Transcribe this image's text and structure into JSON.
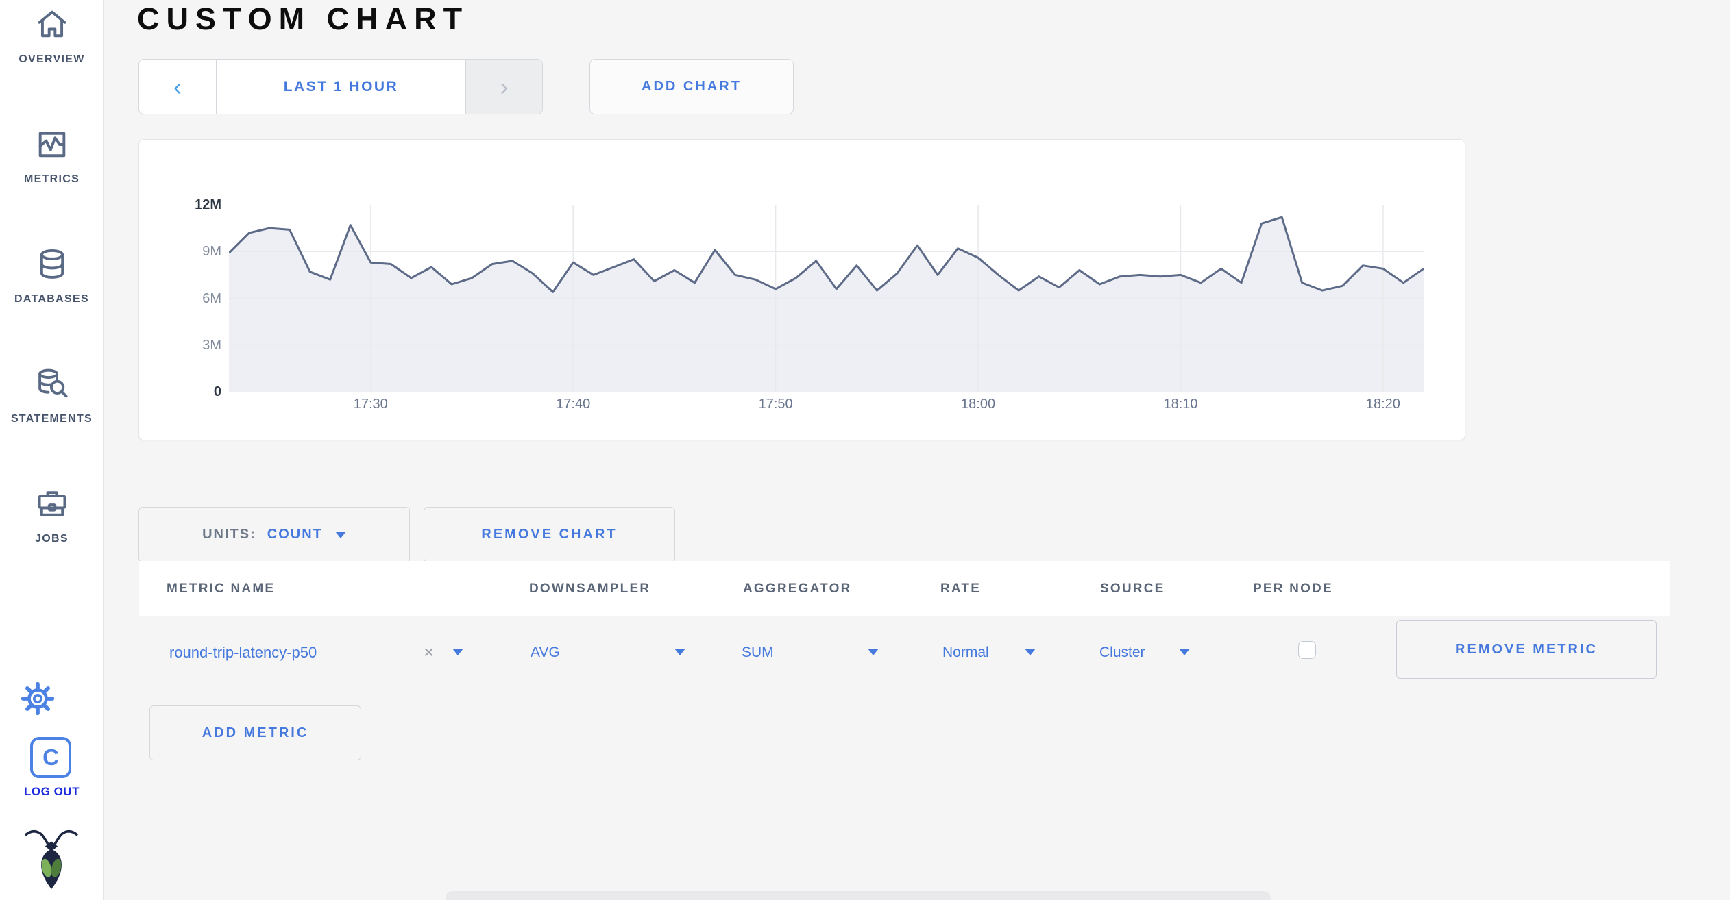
{
  "header": {
    "title": "CUSTOM CHART"
  },
  "toolbar": {
    "time_prev": "‹",
    "time_range_label": "LAST 1 HOUR",
    "time_next": "›",
    "add_chart_label": "ADD CHART"
  },
  "sidebar": {
    "items": [
      {
        "label": "OVERVIEW",
        "icon": "home-icon"
      },
      {
        "label": "METRICS",
        "icon": "metrics-graph-icon"
      },
      {
        "label": "DATABASES",
        "icon": "database-icon"
      },
      {
        "label": "STATEMENTS",
        "icon": "database-search-icon"
      },
      {
        "label": "JOBS",
        "icon": "briefcase-icon"
      }
    ],
    "logo_letter": "C",
    "logout_label": "LOG OUT"
  },
  "chart_controls": {
    "units_label": "UNITS:",
    "units_value": "COUNT",
    "remove_chart_label": "REMOVE CHART"
  },
  "metrics_table": {
    "columns": [
      "METRIC NAME",
      "DOWNSAMPLER",
      "AGGREGATOR",
      "RATE",
      "SOURCE",
      "PER NODE"
    ],
    "row": {
      "metric_name": "round-trip-latency-p50",
      "clear_symbol": "×",
      "downsampler": "AVG",
      "aggregator": "SUM",
      "rate": "Normal",
      "source": "Cluster",
      "per_node_checked": false
    },
    "remove_metric_label": "REMOVE METRIC",
    "add_metric_label": "ADD METRIC"
  },
  "chart_data": {
    "type": "area",
    "title": "",
    "unit": "count",
    "ylim": [
      0,
      12000000
    ],
    "y_ticks": [
      "12M",
      "9M",
      "6M",
      "3M",
      "0"
    ],
    "x_ticks": [
      {
        "minute_offset": 7,
        "label": "17:30"
      },
      {
        "minute_offset": 17,
        "label": "17:40"
      },
      {
        "minute_offset": 27,
        "label": "17:50"
      },
      {
        "minute_offset": 37,
        "label": "18:00"
      },
      {
        "minute_offset": 47,
        "label": "18:10"
      },
      {
        "minute_offset": 57,
        "label": "18:20"
      }
    ],
    "x_start_label": "17:23",
    "x_end_label": "18:22",
    "x_step_minutes": 1,
    "grid": true,
    "legend": false,
    "values_millions": [
      8.9,
      10.2,
      10.5,
      10.4,
      7.7,
      7.2,
      10.7,
      8.3,
      8.2,
      7.3,
      8.0,
      6.9,
      7.3,
      8.2,
      8.4,
      7.6,
      6.4,
      8.3,
      7.5,
      8.0,
      8.5,
      7.1,
      7.8,
      7.0,
      9.1,
      7.5,
      7.2,
      6.6,
      7.3,
      8.4,
      6.6,
      8.1,
      6.5,
      7.6,
      9.4,
      7.5,
      9.2,
      8.6,
      7.5,
      6.5,
      7.4,
      6.7,
      7.8,
      6.9,
      7.4,
      7.5,
      7.4,
      7.5,
      7.0,
      7.9,
      7.0,
      10.8,
      11.2,
      7.0,
      6.5,
      6.8,
      8.1,
      7.9,
      7.0,
      7.9
    ]
  },
  "colors": {
    "accent_blue": "#4579dd",
    "logout_blue": "#1d2bdf",
    "line": "#5d6b88",
    "area_fill": "#edeff4",
    "grid": "#e8e9ec"
  }
}
